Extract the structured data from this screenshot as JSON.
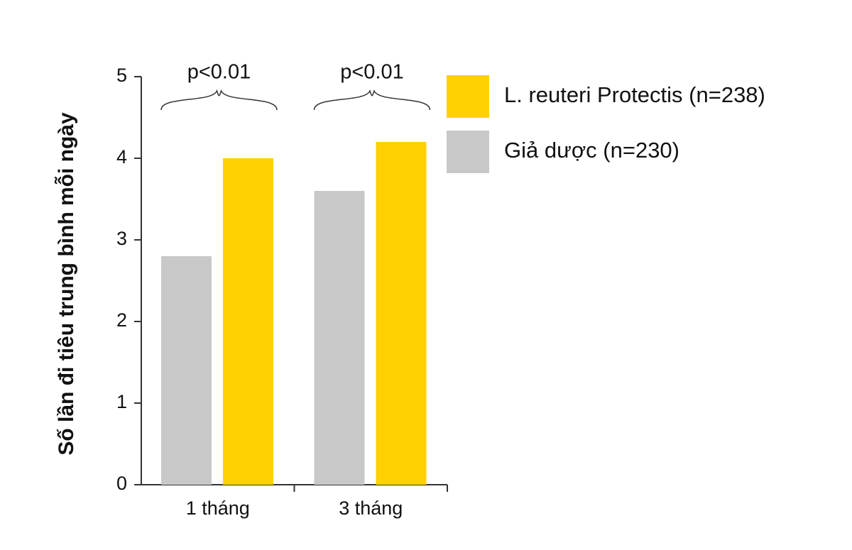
{
  "chart_data": {
    "type": "bar",
    "ylabel": "Số lần đi tiêu trung bình mỗi ngày",
    "categories": [
      "1 tháng",
      "3 tháng"
    ],
    "series": [
      {
        "name": "L. reuteri Protectis (n=238)",
        "color": "#FFD100",
        "values": [
          4.0,
          4.2
        ]
      },
      {
        "name": "Giả dược (n=230)",
        "color": "#C8C8C8",
        "values": [
          2.8,
          3.6
        ]
      }
    ],
    "annotations": [
      "p<0.01",
      "p<0.01"
    ],
    "ylim": [
      0,
      5
    ],
    "yticks": [
      0,
      1,
      2,
      3,
      4,
      5
    ]
  }
}
